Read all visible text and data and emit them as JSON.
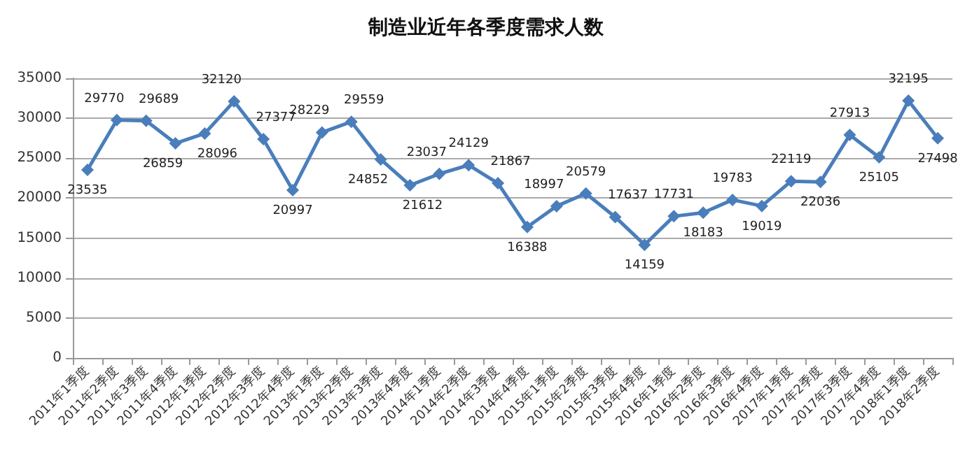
{
  "chart_data": {
    "type": "line",
    "title": "制造业近年各季度需求人数",
    "categories": [
      "2011年1季度",
      "2011年2季度",
      "2011年3季度",
      "2011年4季度",
      "2012年1季度",
      "2012年2季度",
      "2012年3季度",
      "2012年4季度",
      "2013年1季度",
      "2013年2季度",
      "2013年3季度",
      "2013年4季度",
      "2014年1季度",
      "2014年2季度",
      "2014年3季度",
      "2014年4季度",
      "2015年1季度",
      "2015年2季度",
      "2015年3季度",
      "2015年4季度",
      "2016年1季度",
      "2016年2季度",
      "2016年3季度",
      "2016年4季度",
      "2017年1季度",
      "2017年2季度",
      "2017年3季度",
      "2017年4季度",
      "2018年1季度",
      "2018年2季度"
    ],
    "series": [
      {
        "color": "#4a7ebb",
        "values": [
          23535,
          29770,
          29689,
          26859,
          28096,
          32120,
          27377,
          20997,
          28229,
          29559,
          24852,
          21612,
          23037,
          24129,
          21867,
          16388,
          18997,
          20579,
          17637,
          14159,
          17731,
          18183,
          19783,
          19019,
          22119,
          22036,
          27913,
          25105,
          32195,
          27498
        ]
      }
    ],
    "ylim": [
      0,
      35000
    ],
    "yticks": [
      0,
      5000,
      10000,
      15000,
      20000,
      25000,
      30000,
      35000
    ],
    "grid": "y",
    "marker": "diamond",
    "line_style": "solid",
    "data_labels": true
  }
}
